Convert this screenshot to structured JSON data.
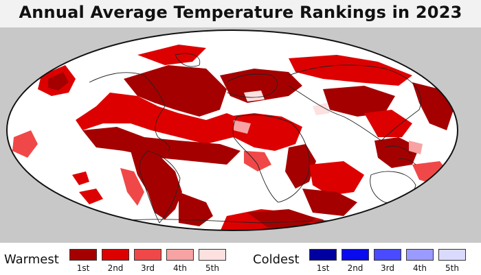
{
  "title": "Annual Average Temperature Rankings in 2023",
  "map": {
    "projection": "Mollweide",
    "ocean_land_default_color": "#ffffff",
    "coastline_color": "#222222",
    "background_color": "#c8c8c8",
    "rank_colors": {
      "1st": "#a50000",
      "2nd": "#dd0000",
      "3rd": "#f04848",
      "4th": "#f7a3a3",
      "5th": "#fde0e0"
    }
  },
  "legend": {
    "warm_heading": "Warmest",
    "cold_heading": "Coldest",
    "warm": [
      {
        "label": "1st",
        "color": "#a50000"
      },
      {
        "label": "2nd",
        "color": "#dd0000"
      },
      {
        "label": "3rd",
        "color": "#f04848"
      },
      {
        "label": "4th",
        "color": "#f7a3a3"
      },
      {
        "label": "5th",
        "color": "#fde0e0"
      }
    ],
    "cold": [
      {
        "label": "1st",
        "color": "#0000a0"
      },
      {
        "label": "2nd",
        "color": "#0a0aee"
      },
      {
        "label": "3rd",
        "color": "#4a4aff"
      },
      {
        "label": "4th",
        "color": "#9a9aff"
      },
      {
        "label": "5th",
        "color": "#dadaff"
      }
    ]
  }
}
